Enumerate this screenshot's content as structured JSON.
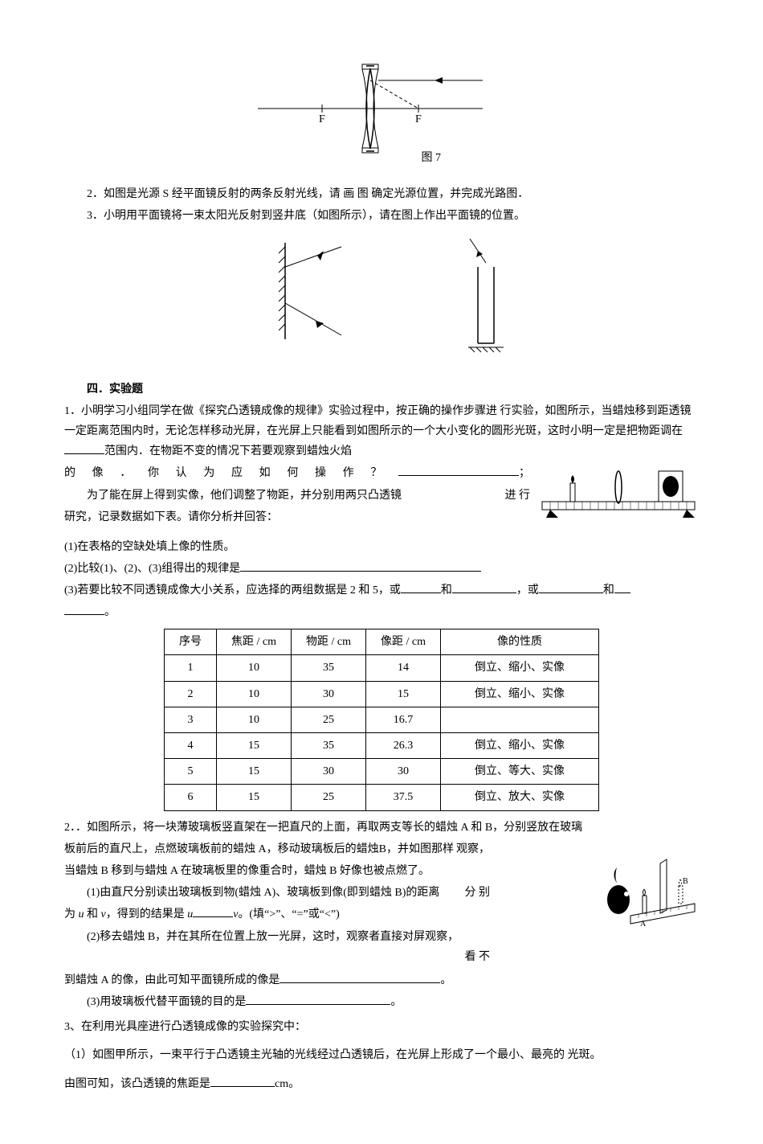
{
  "fig7": {
    "label": "图 7",
    "f_left": "F",
    "f_right": "F"
  },
  "q2": {
    "text": "2．如图是光源 S 经平面镜反射的两条反射光线，请 画 图 确定光源位置，并完成光路图．"
  },
  "q3": {
    "text": "3．小明用平面镜将一束太阳光反射到竖井底（如图所示），请在图上作出平面镜的位置。"
  },
  "section4": {
    "title": "四．实验题"
  },
  "exp1": {
    "p1a": "1．小明学习小组同学在做《探究凸透镜成像的规律》实验过程中，按正确的操作步骤进 行实验，如图所示，当蜡烛移到距透镜一定距离范围内时，无论怎样移动光屏，在光屏上只能看到如图所示的一个大小变化的圆形光斑，这时小明一定是把物距调在",
    "p1b": "范围内．在物距不变的情况下若要观察到蜡烛火焰",
    "p1c_prefix": "的 像 ． 你 认 为 应 如 何 操 作 ？",
    "p1c_suffix": "；",
    "p2": "为了能在屏上得到实像，他们调整了物距，并分别用两只凸透镜",
    "p2b": "进 行",
    "p3": "研究，记录数据如下表。请你分析并回答：",
    "sub1": "(1)在表格的空缺处填上像的性质。",
    "sub2": "(2)比较(1)、(2)、(3)组得出的规律是",
    "sub3a": "(3)若要比较不同透镜成像大小关系，应选择的两组数据是 2 和 5，或",
    "sub3b": "和",
    "sub3c": "，或",
    "sub3d": "和",
    "sub3e": "。"
  },
  "table": {
    "headers": [
      "序号",
      "焦距 / cm",
      "物距 / cm",
      "像距 / cm",
      "像的性质"
    ],
    "rows": [
      [
        "1",
        "10",
        "35",
        "14",
        "倒立、缩小、实像"
      ],
      [
        "2",
        "10",
        "30",
        "15",
        "倒立、缩小、实像"
      ],
      [
        "3",
        "10",
        "25",
        "16.7",
        ""
      ],
      [
        "4",
        "15",
        "35",
        "26.3",
        "倒立、缩小、实像"
      ],
      [
        "5",
        "15",
        "30",
        "30",
        "倒立、等大、实像"
      ],
      [
        "6",
        "15",
        "25",
        "37.5",
        "倒立、放大、实像"
      ]
    ]
  },
  "exp2": {
    "p1": "2．．如图所示，将一块薄玻璃板竖直架在一把直尺的上面，再取两支等长的蜡烛 A 和 B，分别竖放在玻璃",
    "p2a": "板前后的直尺上，点燃玻璃板前的蜡烛 A，移动玻璃板后的蜡烛B，并如图那样",
    "p2b": "观察，",
    "p3": "当蜡烛 B 移到与蜡烛 A 在玻璃板里的像重合时，蜡烛 B 好像也被点燃了。",
    "s1a": "(1)由直尺分别读出玻璃板到物(蜡烛 A)、玻璃板到像(即到蜡烛 B)的距离",
    "s1b": "分 别",
    "s1c_a": "为 ",
    "s1c_u": "u",
    "s1c_mid": " 和 ",
    "s1c_v": "v",
    "s1c_b": "，得到的结果是 ",
    "s1c_u2": "u",
    "s1c_v2": "v",
    "s1c_tail": "。(填“>”、“=”或“<”)",
    "s2a": "(2)移去蜡烛 B，并在其所在位置上放一光屏，这时，观察者直接对屏观察，",
    "s2b": "看 不",
    "s2c": "到蜡烛 A 的像，由此可知平面镜所成的像是",
    "s2d": "。",
    "s3a": "(3)用玻璃板代替平面镜的目的是",
    "s3b": "。"
  },
  "exp3": {
    "p1": "3、在利用光具座进行凸透镜成像的实验探究中：",
    "s1": "（1）如图甲所示，一束平行于凸透镜主光轴的光线经过凸透镜后，在光屏上形成了一个最小、最亮的 光斑。",
    "s2a": "由图可知，该凸透镜的焦距是",
    "s2b": "cm。"
  },
  "svg": {
    "lens_stroke": "#000000",
    "dash": "4 3"
  }
}
